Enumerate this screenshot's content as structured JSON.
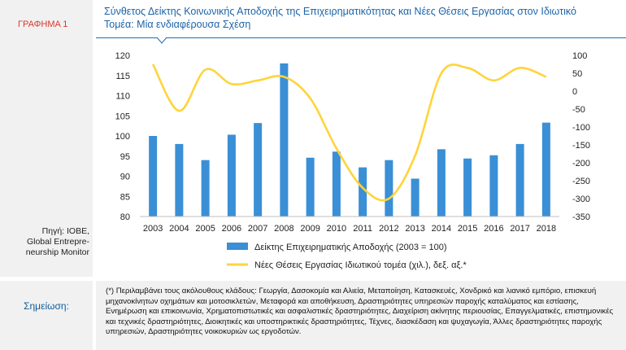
{
  "figure_label": "ΓΡΑΦΗΜΑ 1",
  "title": "Σύνθετος Δείκτης Κοινωνικής Αποδοχής της Επιχειρηματικότητας και Νέες Θέσεις Εργασίας στον Ιδιωτικό Τομέα: Μία ενδιαφέρουσα Σχέση",
  "source_lines": [
    "Πηγή: ΙΟΒΕ,",
    "Global Entrepre-",
    "neurship Monitor"
  ],
  "note_label": "Σημείωση:",
  "note_text": "(*) Περιλαμβάνει τους ακόλουθους κλάδους: Γεωργία, Δασοκομία και Αλιεία, Μεταποίηση, Κατασκευές, Χονδρικό και λιανικό εμπόριο, επισκευή μηχανοκίνητων οχημάτων και μοτοσικλετών, Μεταφορά και αποθήκευση, Δραστηριότητες υπηρεσιών παροχής καταλύματος και εστίασης, Ενημέρωση και επικοινωνία, Χρηματοπιστωτικές και ασφαλιστικές δραστηριότητες, Διαχείριση ακίνητης περιουσίας, Επαγγελματικές, επιστημονικές και τεχνικές δραστηριότητες, Διοικητικές και υποστηρικτικές δραστηριότητες, Τέχνες, διασκέδαση και ψυχαγωγία, Άλλες δραστηριότητες παροχής υπηρεσιών, Δραστηριότητες νοικοκυριών ως εργοδοτών.",
  "colors": {
    "bar": "#3a8fd6",
    "line": "#ffd43b",
    "title": "#1b64a8",
    "label": "#d9382b"
  },
  "chart_data": {
    "type": "bar+line",
    "categories": [
      "2003",
      "2004",
      "2005",
      "2006",
      "2007",
      "2008",
      "2009",
      "2010",
      "2011",
      "2012",
      "2013",
      "2014",
      "2015",
      "2016",
      "2017",
      "2018"
    ],
    "series": [
      {
        "name": "Δείκτης Επιχειρηματικής Αποδοχής (2003 = 100)",
        "type": "bar",
        "axis": "left",
        "values": [
          100,
          98,
          94,
          100.3,
          103.2,
          118,
          94.6,
          96.1,
          92.2,
          94,
          89.4,
          96.7,
          94.4,
          95.2,
          98,
          103.3
        ]
      },
      {
        "name": "Νέες Θέσεις Εργασίας Ιδιωτικού τομέα (χιλ.), δεξ. αξ.*",
        "type": "line",
        "axis": "right",
        "values": [
          75,
          -55,
          60,
          20,
          30,
          40,
          -20,
          -160,
          -270,
          -300,
          -180,
          50,
          65,
          30,
          65,
          40
        ]
      }
    ],
    "y_left": {
      "min": 80,
      "max": 120,
      "ticks": [
        80,
        85,
        90,
        95,
        100,
        105,
        110,
        115,
        120
      ]
    },
    "y_right": {
      "min": -350,
      "max": 100,
      "ticks": [
        100,
        50,
        0,
        -50,
        -100,
        -150,
        -200,
        -250,
        -300,
        -350
      ]
    },
    "legend_placement": "bottom",
    "grid": false
  }
}
